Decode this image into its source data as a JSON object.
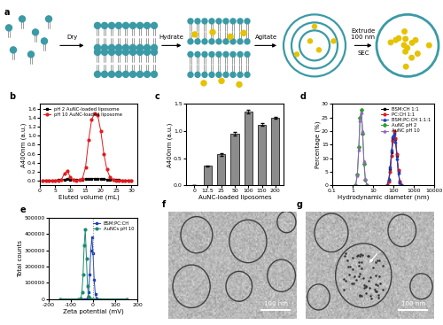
{
  "diagram": {
    "label": "a",
    "steps": [
      {
        "text": "Dry"
      },
      {
        "text": "Hydrate"
      },
      {
        "text": "Agitate"
      },
      {
        "text": "Extrude\n100 nm",
        "below": "SEC"
      }
    ]
  },
  "chart_data": [
    {
      "type": "line",
      "title": "b",
      "xlabel": "Eluted volume (mL)",
      "ylabel": "A400nm (a.u.)",
      "x": [
        1,
        2,
        3,
        4,
        5,
        6,
        7,
        8,
        9,
        10,
        11,
        12,
        13,
        14,
        15,
        16,
        17,
        18,
        19,
        20,
        21,
        22,
        23,
        24,
        25,
        26,
        27,
        28,
        29,
        30
      ],
      "series": [
        {
          "name": "pH 2 AuNC-loaded liposome",
          "color": "#000000",
          "marker": "square",
          "values": [
            0.01,
            0.01,
            0.01,
            0.01,
            0.01,
            0.02,
            0.02,
            0.03,
            0.04,
            0.03,
            0.02,
            0.02,
            0.02,
            0.03,
            0.04,
            0.04,
            0.05,
            0.05,
            0.05,
            0.04,
            0.04,
            0.03,
            0.03,
            0.02,
            0.02,
            0.02,
            0.01,
            0.01,
            0.01,
            0.01
          ]
        },
        {
          "name": "pH 10 AuNC-loaded liposome",
          "color": "#e31a1c",
          "marker": "circle",
          "values": [
            0,
            0,
            0,
            0,
            0,
            0,
            0.02,
            0.15,
            0.22,
            0.08,
            0.02,
            0.01,
            0.02,
            0.05,
            0.3,
            0.9,
            1.35,
            1.5,
            1.45,
            1.1,
            0.6,
            0.25,
            0.08,
            0.03,
            0.01,
            0,
            0,
            0,
            0,
            0
          ]
        }
      ],
      "xlim": [
        0,
        32
      ],
      "xticks": [
        0,
        5,
        10,
        15,
        20,
        25,
        30
      ],
      "ylim": [
        -0.1,
        1.7
      ],
      "yticks": [
        0.0,
        0.2,
        0.4,
        0.6,
        0.8,
        1.0,
        1.2,
        1.4,
        1.6
      ],
      "legend": "upper left"
    },
    {
      "type": "bar",
      "title": "c",
      "xlabel": "AuNC-loaded liposomes",
      "ylabel": "A400nm (a.u.)",
      "categories": [
        "0",
        "12.5",
        "25",
        "50",
        "100",
        "150",
        "200"
      ],
      "values": [
        0,
        0.36,
        0.57,
        0.95,
        1.36,
        1.12,
        1.25
      ],
      "errors": [
        0,
        0.01,
        0.02,
        0.03,
        0.03,
        0.02,
        0.02
      ],
      "color": "#8c8c8c",
      "ylim": [
        0,
        1.5
      ],
      "yticks": [
        0.0,
        0.5,
        1.0,
        1.5
      ]
    },
    {
      "type": "line",
      "title": "d",
      "xlabel": "Hydrodynamic diameter (nm)",
      "ylabel": "Percentage (%)",
      "log": "x",
      "series": [
        {
          "name": "BSM:CH 1:1",
          "color": "#000000",
          "marker": "square",
          "x": [
            50,
            60,
            70,
            82,
            95,
            110,
            128,
            150,
            175,
            205,
            240
          ],
          "values": [
            0,
            2,
            6,
            12,
            17,
            19.5,
            17,
            11,
            5,
            1.5,
            0
          ]
        },
        {
          "name": "PC:CH 1:1",
          "color": "#e31a1c",
          "marker": "circle",
          "x": [
            50,
            60,
            70,
            82,
            95,
            110,
            128,
            150,
            175,
            205,
            240
          ],
          "values": [
            0,
            1.5,
            5,
            11,
            16.5,
            20,
            17.5,
            11.5,
            5.5,
            1.5,
            0
          ]
        },
        {
          "name": "BSM:PC:CH 1:1:1",
          "color": "#1f3fbf",
          "marker": "triangle",
          "x": [
            50,
            60,
            70,
            82,
            95,
            110,
            128,
            150,
            175,
            205,
            240
          ],
          "values": [
            0,
            2.5,
            7,
            13,
            18,
            19,
            16,
            10,
            4.5,
            1,
            0
          ]
        },
        {
          "name": "AuNC pH 2",
          "color": "#2ca02c",
          "marker": "diamond",
          "x": [
            1.4,
            1.7,
            2.0,
            2.3,
            2.7,
            3.1,
            3.6,
            4.2,
            5.0
          ],
          "values": [
            0,
            4,
            14,
            25,
            28,
            19,
            8,
            2,
            0
          ]
        },
        {
          "name": "AuNC pH 10",
          "color": "#9467bd",
          "marker": "triangle",
          "x": [
            1.4,
            1.7,
            2.0,
            2.3,
            2.7,
            3.1,
            3.6,
            4.2,
            5.0
          ],
          "values": [
            0,
            3.5,
            13,
            24,
            27,
            20,
            9,
            2.5,
            0
          ]
        }
      ],
      "xlim": [
        0.1,
        10000
      ],
      "xticks": [
        0.1,
        1,
        10,
        100,
        1000,
        10000
      ],
      "ylim": [
        0,
        30
      ],
      "yticks": [
        0,
        5,
        10,
        15,
        20,
        25,
        30
      ],
      "legend": "upper right"
    },
    {
      "type": "line",
      "title": "e",
      "xlabel": "Zeta potential (mV)",
      "ylabel": "Total counts",
      "series": [
        {
          "name": "BSM:PC:CH",
          "color": "#1f3fbf",
          "marker": "square",
          "x": [
            -150,
            -40,
            -30,
            -25,
            -20,
            -15,
            -10,
            -5,
            0,
            5,
            10,
            15,
            20,
            30,
            150
          ],
          "values": [
            0,
            0,
            0,
            5000,
            40000,
            150000,
            300000,
            380000,
            280000,
            120000,
            30000,
            5000,
            0,
            0,
            0
          ]
        },
        {
          "name": "AuNCs pH 10",
          "color": "#1a8a6a",
          "marker": "circle",
          "x": [
            -150,
            -70,
            -60,
            -55,
            -50,
            -45,
            -40,
            -35,
            -30,
            -25,
            -20,
            -15,
            -10,
            0,
            150
          ],
          "values": [
            0,
            0,
            0,
            5000,
            40000,
            150000,
            330000,
            430000,
            250000,
            80000,
            15000,
            2000,
            0,
            0,
            0
          ]
        }
      ],
      "reference_x": 0,
      "xlim": [
        -200,
        200
      ],
      "xticks": [
        -200,
        -100,
        0,
        100,
        200
      ],
      "ylim": [
        0,
        500000
      ],
      "yticks": [
        0,
        100000,
        200000,
        300000,
        400000,
        500000
      ],
      "legend": "upper right"
    }
  ],
  "images": [
    {
      "label": "f",
      "scale_bar": "100 nm"
    },
    {
      "label": "g",
      "scale_bar": "100 nm"
    }
  ]
}
